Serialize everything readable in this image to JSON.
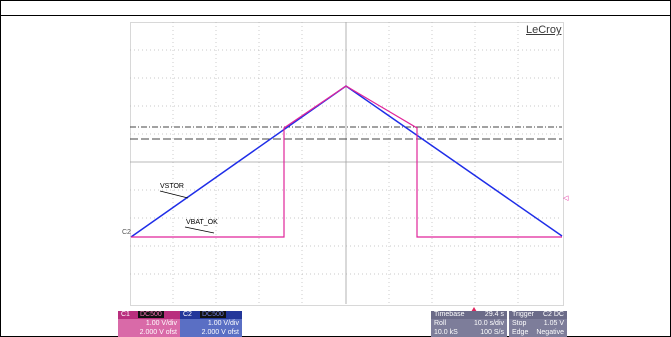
{
  "brand": "LeCroy",
  "traces": {
    "vstor_label": "VSTOR",
    "vbat_label": "VBAT_OK",
    "c2_marker": "C2",
    "right_marker": "◁"
  },
  "colors": {
    "vstor": "#1f2ee8",
    "vbat": "#e0259a",
    "grid": "#b8b8b8",
    "threshold": "#444444"
  },
  "panels": {
    "c1": {
      "name": "C1",
      "tag": "DC500",
      "scale": "1.00 V/div",
      "offset": "2.000 V ofst"
    },
    "c2": {
      "name": "C2",
      "tag": "DC500",
      "scale": "1.00 V/div",
      "offset": "2.000 V ofst"
    },
    "timebase": {
      "label": "Timebase",
      "value": "29.4 s",
      "mode": "Roll",
      "div": "10.0 s/div",
      "rate": "10.0 kS",
      "sr": "100 S/s"
    },
    "trigger": {
      "label": "Trigger",
      "chan": "C2 DC",
      "mode": "Stop",
      "level": "1.05 V",
      "type": "Edge",
      "slope": "Negative"
    }
  }
}
